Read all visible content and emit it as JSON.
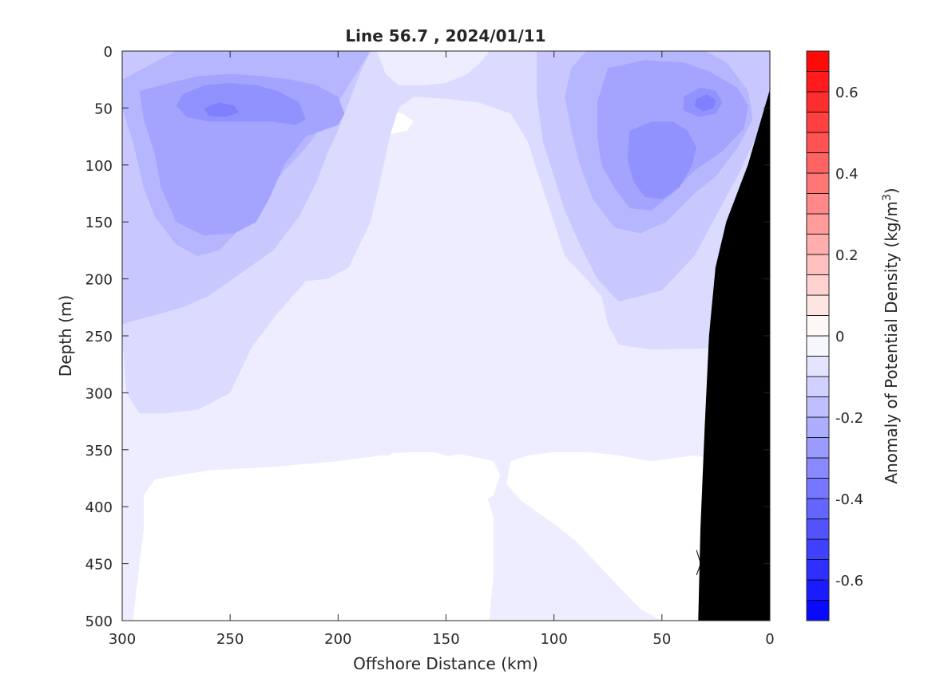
{
  "chart_data": {
    "type": "contour",
    "title": "Line 56.7 , 2024/01/11",
    "xlabel": "Offshore Distance (km)",
    "ylabel": "Depth (m)",
    "xlim": [
      300,
      0
    ],
    "ylim": [
      0,
      500
    ],
    "x_reversed": true,
    "y_reversed": true,
    "xticks": [
      300,
      250,
      200,
      150,
      100,
      50,
      0
    ],
    "yticks": [
      0,
      50,
      100,
      150,
      200,
      250,
      300,
      350,
      400,
      450,
      500
    ],
    "colorbar": {
      "label_prefix": "Anomaly of Potential Density (kg/m",
      "label_exp": "3",
      "label_suffix": ")",
      "range": [
        -0.7,
        0.7
      ],
      "step": 0.05,
      "ticks": [
        -0.6,
        -0.4,
        -0.2,
        0,
        0.2,
        0.4,
        0.6
      ],
      "tick_labels": [
        "-0.6",
        "-0.4",
        "-0.2",
        "0",
        "0.2",
        "0.4",
        "0.6"
      ],
      "low_color": "#0000ff",
      "mid_color": "#ffffff",
      "high_color": "#ff0000"
    },
    "contour_regions": [
      {
        "level": -0.05,
        "points": [
          [
            300,
            0
          ],
          [
            0,
            0
          ],
          [
            0,
            500
          ],
          [
            300,
            500
          ]
        ]
      },
      {
        "level": 0.0,
        "points": [
          [
            183,
            500
          ],
          [
            180,
            440
          ],
          [
            175,
            390
          ],
          [
            163,
            372
          ],
          [
            150,
            395
          ],
          [
            137,
            400
          ],
          [
            128,
            390
          ],
          [
            125,
            372
          ],
          [
            128,
            360
          ],
          [
            143,
            354
          ],
          [
            152,
            356
          ],
          [
            165,
            355
          ],
          [
            180,
            355
          ],
          [
            200,
            360
          ],
          [
            230,
            365
          ],
          [
            260,
            368
          ],
          [
            285,
            376
          ],
          [
            290,
            390
          ],
          [
            290,
            420
          ],
          [
            292,
            450
          ],
          [
            295,
            500
          ]
        ]
      },
      {
        "level": 0.0,
        "points": [
          [
            130,
            500
          ],
          [
            128,
            460
          ],
          [
            128,
            410
          ],
          [
            132,
            385
          ],
          [
            142,
            360
          ],
          [
            155,
            352
          ],
          [
            165,
            352
          ],
          [
            175,
            353
          ],
          [
            180,
            361
          ],
          [
            186,
            375
          ],
          [
            187,
            395
          ],
          [
            186,
            420
          ],
          [
            190,
            440
          ],
          [
            195,
            465
          ],
          [
            205,
            478
          ],
          [
            215,
            480
          ],
          [
            230,
            478
          ],
          [
            245,
            475
          ],
          [
            260,
            478
          ],
          [
            272,
            480
          ],
          [
            280,
            480
          ],
          [
            282,
            500
          ]
        ]
      },
      {
        "level": 0.0,
        "points": [
          [
            55,
            360
          ],
          [
            70,
            355
          ],
          [
            85,
            352
          ],
          [
            100,
            352
          ],
          [
            112,
            355
          ],
          [
            120,
            360
          ],
          [
            122,
            380
          ],
          [
            115,
            395
          ],
          [
            100,
            415
          ],
          [
            90,
            430
          ],
          [
            80,
            450
          ],
          [
            70,
            470
          ],
          [
            60,
            490
          ],
          [
            50,
            500
          ],
          [
            40,
            500
          ],
          [
            30,
            500
          ],
          [
            20,
            500
          ],
          [
            20,
            360
          ],
          [
            35,
            355
          ]
        ]
      },
      {
        "level": 0.0,
        "points": [
          [
            165,
            62
          ],
          [
            170,
            55
          ],
          [
            178,
            52
          ],
          [
            184,
            55
          ],
          [
            186,
            62
          ],
          [
            183,
            70
          ],
          [
            176,
            73
          ],
          [
            168,
            70
          ]
        ]
      },
      {
        "level": -0.1,
        "points": [
          [
            300,
            15
          ],
          [
            295,
            5
          ],
          [
            293,
            0
          ],
          [
            182,
            0
          ],
          [
            178,
            20
          ],
          [
            172,
            30
          ],
          [
            160,
            30
          ],
          [
            150,
            28
          ],
          [
            140,
            20
          ],
          [
            133,
            8
          ],
          [
            130,
            0
          ],
          [
            0,
            0
          ],
          [
            0,
            260
          ],
          [
            55,
            262
          ],
          [
            70,
            258
          ],
          [
            75,
            240
          ],
          [
            78,
            215
          ],
          [
            85,
            200
          ],
          [
            95,
            180
          ],
          [
            100,
            150
          ],
          [
            107,
            110
          ],
          [
            112,
            80
          ],
          [
            120,
            55
          ],
          [
            135,
            45
          ],
          [
            150,
            42
          ],
          [
            165,
            40
          ],
          [
            172,
            50
          ],
          [
            176,
            75
          ],
          [
            180,
            110
          ],
          [
            185,
            150
          ],
          [
            195,
            190
          ],
          [
            205,
            200
          ],
          [
            215,
            202
          ],
          [
            228,
            230
          ],
          [
            240,
            260
          ],
          [
            250,
            300
          ],
          [
            265,
            315
          ],
          [
            280,
            318
          ],
          [
            292,
            318
          ],
          [
            298,
            300
          ],
          [
            300,
            250
          ]
        ]
      },
      {
        "level": -0.15,
        "points": [
          [
            300,
            0
          ],
          [
            185,
            0
          ],
          [
            190,
            20
          ],
          [
            195,
            45
          ],
          [
            200,
            70
          ],
          [
            205,
            90
          ],
          [
            210,
            115
          ],
          [
            218,
            145
          ],
          [
            230,
            175
          ],
          [
            245,
            195
          ],
          [
            260,
            215
          ],
          [
            272,
            225
          ],
          [
            285,
            232
          ],
          [
            295,
            237
          ],
          [
            300,
            240
          ]
        ]
      },
      {
        "level": -0.15,
        "points": [
          [
            108,
            0
          ],
          [
            0,
            0
          ],
          [
            0,
            50
          ],
          [
            5,
            70
          ],
          [
            15,
            110
          ],
          [
            25,
            145
          ],
          [
            35,
            180
          ],
          [
            50,
            210
          ],
          [
            70,
            220
          ],
          [
            80,
            200
          ],
          [
            88,
            170
          ],
          [
            95,
            140
          ],
          [
            100,
            110
          ],
          [
            105,
            80
          ],
          [
            108,
            40
          ]
        ]
      },
      {
        "level": -0.2,
        "points": [
          [
            300,
            25
          ],
          [
            290,
            15
          ],
          [
            280,
            5
          ],
          [
            275,
            0
          ],
          [
            185,
            0
          ],
          [
            195,
            30
          ],
          [
            205,
            60
          ],
          [
            215,
            85
          ],
          [
            225,
            105
          ],
          [
            235,
            130
          ],
          [
            245,
            155
          ],
          [
            255,
            175
          ],
          [
            265,
            180
          ],
          [
            275,
            170
          ],
          [
            285,
            145
          ],
          [
            290,
            120
          ],
          [
            295,
            80
          ],
          [
            300,
            50
          ]
        ]
      },
      {
        "level": -0.2,
        "points": [
          [
            85,
            0
          ],
          [
            55,
            0
          ],
          [
            30,
            0
          ],
          [
            20,
            10
          ],
          [
            10,
            35
          ],
          [
            8,
            60
          ],
          [
            15,
            85
          ],
          [
            25,
            110
          ],
          [
            35,
            125
          ],
          [
            48,
            150
          ],
          [
            60,
            160
          ],
          [
            72,
            155
          ],
          [
            82,
            130
          ],
          [
            88,
            100
          ],
          [
            92,
            70
          ],
          [
            95,
            40
          ],
          [
            92,
            15
          ]
        ]
      },
      {
        "level": -0.25,
        "points": [
          [
            292,
            35
          ],
          [
            278,
            28
          ],
          [
            265,
            22
          ],
          [
            250,
            20
          ],
          [
            235,
            22
          ],
          [
            222,
            25
          ],
          [
            210,
            30
          ],
          [
            200,
            40
          ],
          [
            197,
            55
          ],
          [
            200,
            65
          ],
          [
            215,
            75
          ],
          [
            225,
            100
          ],
          [
            232,
            130
          ],
          [
            238,
            150
          ],
          [
            248,
            160
          ],
          [
            262,
            162
          ],
          [
            275,
            150
          ],
          [
            282,
            120
          ],
          [
            285,
            90
          ],
          [
            290,
            60
          ]
        ]
      },
      {
        "level": -0.25,
        "points": [
          [
            75,
            15
          ],
          [
            58,
            8
          ],
          [
            40,
            10
          ],
          [
            28,
            18
          ],
          [
            15,
            32
          ],
          [
            10,
            48
          ],
          [
            12,
            68
          ],
          [
            22,
            88
          ],
          [
            35,
            105
          ],
          [
            45,
            125
          ],
          [
            55,
            140
          ],
          [
            65,
            138
          ],
          [
            72,
            120
          ],
          [
            78,
            100
          ],
          [
            80,
            75
          ],
          [
            80,
            45
          ]
        ]
      },
      {
        "level": -0.3,
        "points": [
          [
            272,
            38
          ],
          [
            262,
            30
          ],
          [
            250,
            28
          ],
          [
            238,
            30
          ],
          [
            228,
            35
          ],
          [
            218,
            45
          ],
          [
            215,
            60
          ],
          [
            220,
            65
          ],
          [
            230,
            62
          ],
          [
            245,
            62
          ],
          [
            260,
            62
          ],
          [
            270,
            58
          ],
          [
            275,
            48
          ]
        ]
      },
      {
        "level": -0.3,
        "points": [
          [
            65,
            70
          ],
          [
            55,
            62
          ],
          [
            45,
            62
          ],
          [
            38,
            70
          ],
          [
            34,
            85
          ],
          [
            36,
            100
          ],
          [
            42,
            120
          ],
          [
            50,
            130
          ],
          [
            58,
            128
          ],
          [
            63,
            115
          ],
          [
            66,
            95
          ]
        ]
      },
      {
        "level": -0.3,
        "points": [
          [
            40,
            40
          ],
          [
            32,
            32
          ],
          [
            25,
            35
          ],
          [
            22,
            45
          ],
          [
            25,
            55
          ],
          [
            33,
            58
          ],
          [
            40,
            52
          ]
        ]
      },
      {
        "level": -0.35,
        "points": [
          [
            262,
            50
          ],
          [
            255,
            45
          ],
          [
            248,
            48
          ],
          [
            246,
            54
          ],
          [
            252,
            58
          ],
          [
            260,
            57
          ]
        ]
      },
      {
        "level": -0.35,
        "points": [
          [
            34,
            42
          ],
          [
            29,
            38
          ],
          [
            25,
            43
          ],
          [
            26,
            50
          ],
          [
            31,
            53
          ],
          [
            35,
            48
          ]
        ]
      }
    ],
    "bathymetry_points": [
      [
        0,
        35
      ],
      [
        10,
        100
      ],
      [
        20,
        150
      ],
      [
        25,
        190
      ],
      [
        28,
        250
      ],
      [
        30,
        330
      ],
      [
        32,
        420
      ],
      [
        33,
        500
      ],
      [
        0,
        500
      ]
    ],
    "contour_line_points": [
      [
        34,
        438
      ],
      [
        32,
        450
      ],
      [
        34,
        460
      ]
    ]
  }
}
